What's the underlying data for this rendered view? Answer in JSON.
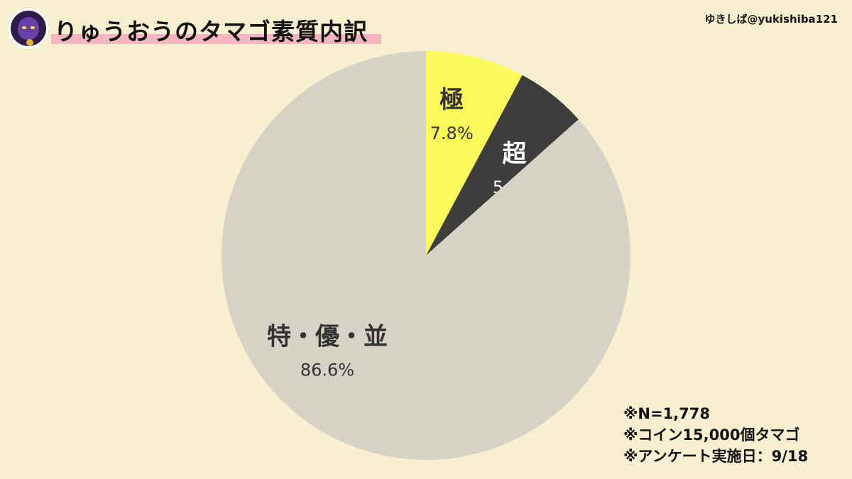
{
  "header": {
    "title": "りゅうおうのタマゴ素質内訳",
    "credit": "ゆきしば@yukishiba121",
    "avatar_icon": "dragonlord-avatar-icon"
  },
  "colors": {
    "background": "#f7efcf",
    "title_highlight": "#f4b7c0"
  },
  "chart_data": {
    "type": "pie",
    "title": "りゅうおうのタマゴ素質内訳",
    "start": "12 o'clock, clockwise",
    "slices": [
      {
        "label": "極",
        "value": 7.8,
        "value_label": "7.8%",
        "color": "#fbfa5a",
        "text_color": "#333333"
      },
      {
        "label": "超",
        "value": 5.6,
        "value_label": "5.6%",
        "color": "#3d3d3d",
        "text_color": "#ffffff"
      },
      {
        "label": "特・優・並",
        "value": 86.6,
        "value_label": "86.6%",
        "color": "#d6d2c6",
        "text_color": "#333333"
      }
    ]
  },
  "notes": [
    "※N=1,778",
    "※コイン15,000個タマゴ",
    "※アンケート実施日：9/18"
  ]
}
